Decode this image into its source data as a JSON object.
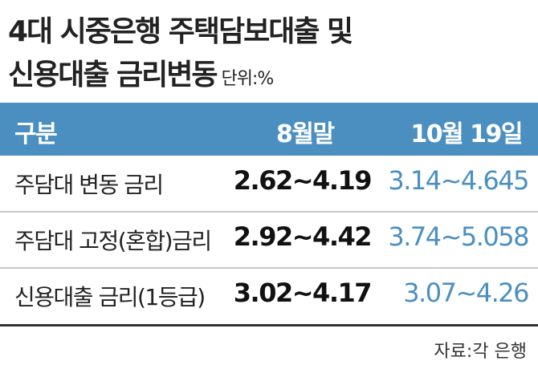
{
  "header": {
    "title_lines": [
      "4대 시중은행 주택담보대출 및",
      "신용대출 금리변동"
    ],
    "unit": "단위:%"
  },
  "table": {
    "columns": [
      "구분",
      "8월말",
      "10월 19일"
    ],
    "rows": [
      [
        "주담대 변동 금리",
        "2.62~4.19",
        "3.14~4.645"
      ],
      [
        "주담대 고정(혼합)금리",
        "2.92~4.42",
        "3.74~5.058"
      ],
      [
        "신용대출 금리(1등급)",
        "3.02~4.17",
        "3.07~4.26"
      ]
    ]
  },
  "footer": {
    "source": "자료:각 은행"
  }
}
